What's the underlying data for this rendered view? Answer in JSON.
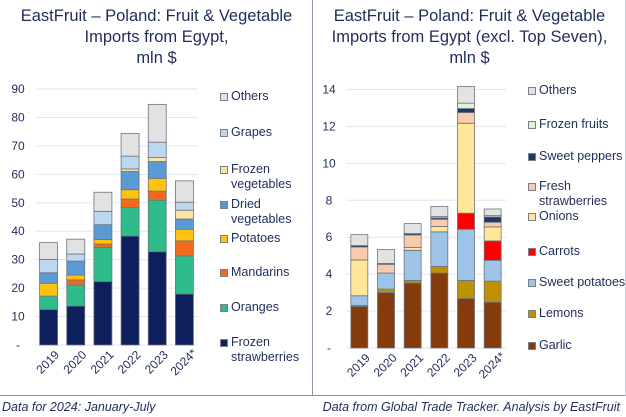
{
  "footer": {
    "left_note": "Data for 2024: January-July",
    "right_note": "Data from Global Trade Tracker. Analysis by EastFruit"
  },
  "chart_data": [
    {
      "type": "bar",
      "stacked": true,
      "title_lines": [
        "EastFruit – Poland: Fruit & Vegetable",
        "Imports from Egypt,",
        "mln $"
      ],
      "title": "EastFruit – Poland: Fruit & Vegetable Imports from Egypt, mln $",
      "xlabel": "",
      "ylabel": "",
      "ylim": [
        0,
        90
      ],
      "yticks": [
        0,
        10,
        20,
        30,
        40,
        50,
        60,
        70,
        80,
        90
      ],
      "ytick_labels": [
        "-",
        "10",
        "20",
        "30",
        "40",
        "50",
        "60",
        "70",
        "80",
        "90"
      ],
      "grid": true,
      "legend_position": "right",
      "categories": [
        "2019",
        "2020",
        "2021",
        "2022",
        "2023",
        "2024*"
      ],
      "series": [
        {
          "name": "Frozen strawberries",
          "color": "#0d1f5c",
          "values": [
            12.5,
            13.7,
            22.3,
            38.3,
            32.8,
            17.9
          ]
        },
        {
          "name": "Oranges",
          "color": "#2ebd8a",
          "values": [
            4.7,
            7.4,
            12.0,
            10.0,
            18.1,
            13.4
          ]
        },
        {
          "name": "Mandarins",
          "color": "#f26a1b",
          "values": [
            0.0,
            1.8,
            1.2,
            3.0,
            3.2,
            5.3
          ]
        },
        {
          "name": "Potatoes",
          "color": "#ffc20e",
          "values": [
            4.5,
            1.7,
            1.6,
            3.3,
            4.5,
            4.1
          ]
        },
        {
          "name": "Dried vegetables",
          "color": "#5b9bd5",
          "values": [
            3.7,
            4.9,
            5.2,
            6.4,
            5.9,
            3.6
          ]
        },
        {
          "name": "Frozen vegetables",
          "color": "#fce4a0",
          "values": [
            0.0,
            0.0,
            0.0,
            0.9,
            1.4,
            3.1
          ]
        },
        {
          "name": "Grapes",
          "color": "#bdd7ee",
          "values": [
            4.7,
            2.5,
            4.7,
            4.5,
            5.4,
            2.8
          ]
        },
        {
          "name": "Others",
          "color": "#e2e2e2",
          "values": [
            5.9,
            5.2,
            6.7,
            8.0,
            13.3,
            7.5
          ]
        }
      ],
      "legend_order": [
        "Others",
        "Grapes",
        "Frozen vegetables",
        "Dried vegetables",
        "Potatoes",
        "Mandarins",
        "Oranges",
        "Frozen strawberries"
      ]
    },
    {
      "type": "bar",
      "stacked": true,
      "title_lines": [
        "EastFruit – Poland: Fruit & Vegetable",
        "Imports from Egypt (excl. Top Seven),",
        "mln $"
      ],
      "title": "EastFruit – Poland: Fruit & Vegetable Imports from Egypt (excl. Top Seven), mln $",
      "xlabel": "",
      "ylabel": "",
      "ylim": [
        0,
        14
      ],
      "yticks": [
        0,
        2,
        4,
        6,
        8,
        10,
        12,
        14
      ],
      "ytick_labels": [
        "-",
        "2",
        "4",
        "6",
        "8",
        "10",
        "12",
        "14"
      ],
      "grid": true,
      "legend_position": "right",
      "categories": [
        "2019",
        "2020",
        "2021",
        "2022",
        "2023",
        "2024*"
      ],
      "series": [
        {
          "name": "Garlic",
          "color": "#843c0c",
          "values": [
            2.25,
            3.0,
            3.52,
            4.06,
            2.68,
            2.48
          ]
        },
        {
          "name": "Lemons",
          "color": "#bf9000",
          "values": [
            0.05,
            0.19,
            0.14,
            0.36,
            0.98,
            1.14
          ]
        },
        {
          "name": "Sweet potatoes",
          "color": "#9dc3e6",
          "values": [
            0.53,
            0.87,
            1.63,
            1.87,
            2.77,
            1.13
          ]
        },
        {
          "name": "Carrots",
          "color": "#ff0000",
          "values": [
            0.0,
            0.0,
            0.0,
            0.0,
            0.87,
            1.05
          ]
        },
        {
          "name": "Onions",
          "color": "#ffe699",
          "values": [
            1.94,
            0.0,
            0.16,
            0.29,
            4.87,
            0.76
          ]
        },
        {
          "name": "Fresh strawberries",
          "color": "#f8cbad",
          "values": [
            0.7,
            0.47,
            0.67,
            0.39,
            0.58,
            0.25
          ]
        },
        {
          "name": "Sweet peppers",
          "color": "#203864",
          "values": [
            0.08,
            0.05,
            0.08,
            0.08,
            0.22,
            0.29
          ]
        },
        {
          "name": "Frozen fruits",
          "color": "#e2efda",
          "values": [
            0.0,
            0.0,
            0.0,
            0.07,
            0.29,
            0.07
          ]
        },
        {
          "name": "Others",
          "color": "#e2e2e2",
          "values": [
            0.59,
            0.75,
            0.54,
            0.54,
            0.91,
            0.36
          ]
        }
      ],
      "legend_order": [
        "Others",
        "Frozen fruits",
        "Sweet peppers",
        "Fresh strawberries",
        "Onions",
        "Carrots",
        "Sweet potatoes",
        "Lemons",
        "Garlic"
      ]
    }
  ]
}
